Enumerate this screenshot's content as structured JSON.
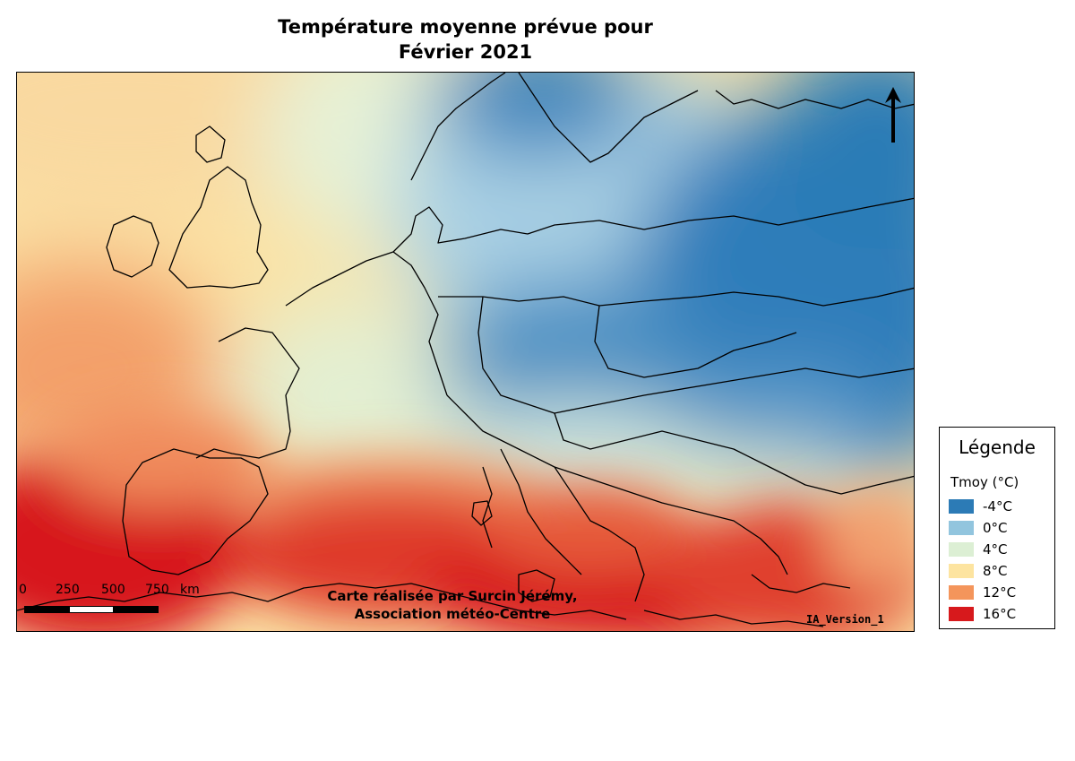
{
  "title": {
    "line1": "Température moyenne prévue pour",
    "line2": "Février 2021"
  },
  "map": {
    "credit_line1": "Carte réalisée par Surcin Jérémy,",
    "credit_line2": "Association météo-Centre",
    "version": "IA_Version_1",
    "scale_labels": [
      "0",
      "250",
      "500",
      "750",
      "km"
    ],
    "north_arrow_icon": "north-arrow-icon"
  },
  "legend": {
    "title": "Légende",
    "variable": "Tmoy (°C)",
    "items": [
      {
        "label": "-4°C",
        "color": "#2c7bb6"
      },
      {
        "label": "0°C",
        "color": "#92c5de"
      },
      {
        "label": "4°C",
        "color": "#dcefd4"
      },
      {
        "label": "8°C",
        "color": "#fde4a0"
      },
      {
        "label": "12°C",
        "color": "#f4955b"
      },
      {
        "label": "16°C",
        "color": "#d7191c"
      }
    ]
  }
}
